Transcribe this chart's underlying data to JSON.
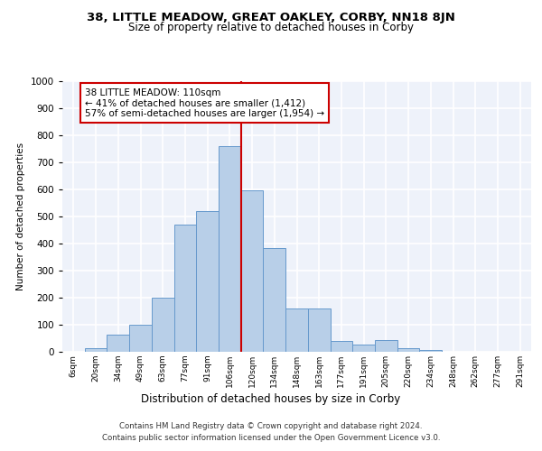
{
  "title1": "38, LITTLE MEADOW, GREAT OAKLEY, CORBY, NN18 8JN",
  "title2": "Size of property relative to detached houses in Corby",
  "xlabel": "Distribution of detached houses by size in Corby",
  "ylabel": "Number of detached properties",
  "footer1": "Contains HM Land Registry data © Crown copyright and database right 2024.",
  "footer2": "Contains public sector information licensed under the Open Government Licence v3.0.",
  "annotation_title": "38 LITTLE MEADOW: 110sqm",
  "annotation_line1": "← 41% of detached houses are smaller (1,412)",
  "annotation_line2": "57% of semi-detached houses are larger (1,954) →",
  "bar_categories": [
    "6sqm",
    "20sqm",
    "34sqm",
    "49sqm",
    "63sqm",
    "77sqm",
    "91sqm",
    "106sqm",
    "120sqm",
    "134sqm",
    "148sqm",
    "163sqm",
    "177sqm",
    "191sqm",
    "205sqm",
    "220sqm",
    "234sqm",
    "248sqm",
    "262sqm",
    "277sqm",
    "291sqm"
  ],
  "bar_values": [
    0,
    13,
    62,
    100,
    200,
    470,
    520,
    760,
    597,
    383,
    160,
    160,
    40,
    28,
    43,
    13,
    7,
    0,
    0,
    0,
    0
  ],
  "bar_color": "#b8cfe8",
  "bar_edge_color": "#6699cc",
  "vline_color": "#cc0000",
  "vline_x": 7.5,
  "annotation_box_color": "#ffffff",
  "annotation_box_edge": "#cc0000",
  "bg_color": "#eef2fa",
  "grid_color": "#ffffff",
  "ylim": [
    0,
    1000
  ],
  "yticks": [
    0,
    100,
    200,
    300,
    400,
    500,
    600,
    700,
    800,
    900,
    1000
  ]
}
